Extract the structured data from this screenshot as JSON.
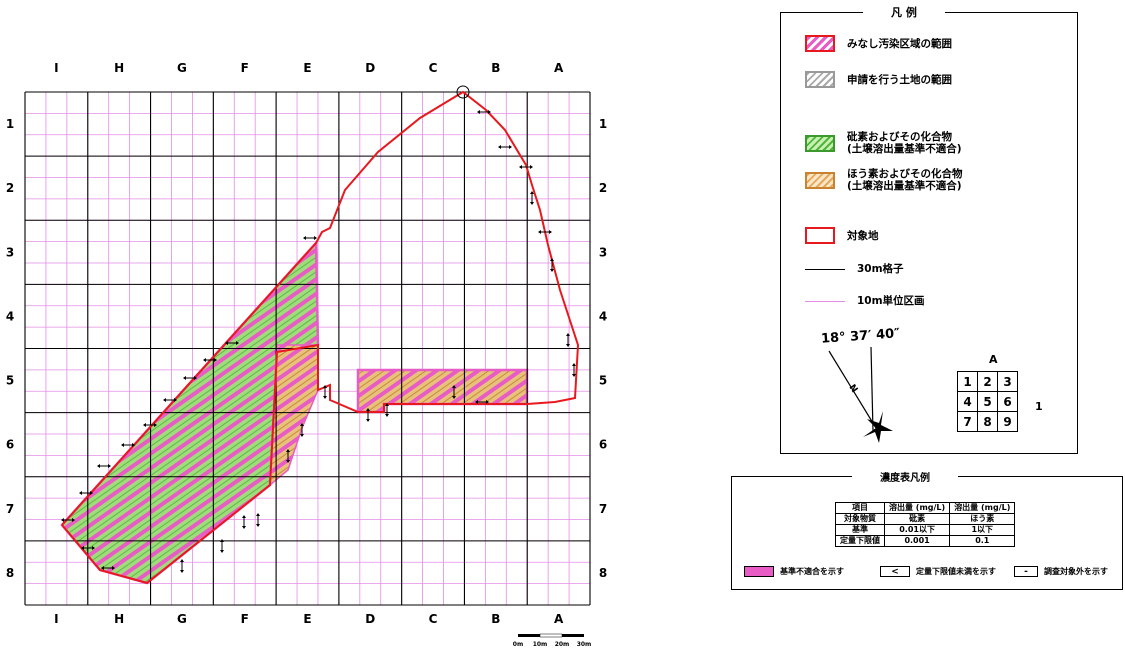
{
  "map": {
    "columns": [
      "I",
      "H",
      "G",
      "F",
      "E",
      "D",
      "C",
      "B",
      "A"
    ],
    "rows": [
      "1",
      "2",
      "3",
      "4",
      "5",
      "6",
      "7",
      "8"
    ],
    "scale": {
      "labels": [
        "0m",
        "10m",
        "20m",
        "30m"
      ]
    },
    "colors": {
      "site_outline": "#e8191e",
      "pink": "#e85cc5",
      "grid_minor": "#e38de6",
      "green": "#7ed36b",
      "orange": "#e6a95c"
    }
  },
  "legend": {
    "title": "凡  例",
    "items": [
      {
        "label": "みなし汚染区域の範囲",
        "swatch": "pink-hatch"
      },
      {
        "label": "申請を行う土地の範囲",
        "swatch": "gray-hatch"
      },
      {
        "label": "砒素およびその化合物",
        "sub": "(土壌溶出量基準不適合)",
        "swatch": "green-hatch"
      },
      {
        "label": "ほう素およびその化合物",
        "sub": "(土壌溶出量基準不適合)",
        "swatch": "orange-hatch"
      },
      {
        "label": "対象地",
        "swatch": "red-outline"
      },
      {
        "label": "30m格子",
        "swatch": "black-line"
      },
      {
        "label": "10m単位区画",
        "swatch": "pink-line"
      }
    ],
    "angle": "18° 37′ 40″",
    "north_label": "N",
    "key_grid": {
      "top": "A",
      "right": "1",
      "cells": [
        "1",
        "2",
        "3",
        "4",
        "5",
        "6",
        "7",
        "8",
        "9"
      ]
    }
  },
  "concentration": {
    "title": "濃度表凡例",
    "table": [
      [
        "項目",
        "溶出量 (mg/L)",
        "溶出量 (mg/L)"
      ],
      [
        "対象物質",
        "砒素",
        "ほう素"
      ],
      [
        "基準",
        "0.01以下",
        "1以下"
      ],
      [
        "定量下限値",
        "0.001",
        "0.1"
      ]
    ],
    "keys": [
      {
        "symbol": "",
        "label": "基準不適合を示す"
      },
      {
        "symbol": "<",
        "label": "定量下限値未満を示す"
      },
      {
        "symbol": "-",
        "label": "調査対象外を示す"
      }
    ]
  }
}
